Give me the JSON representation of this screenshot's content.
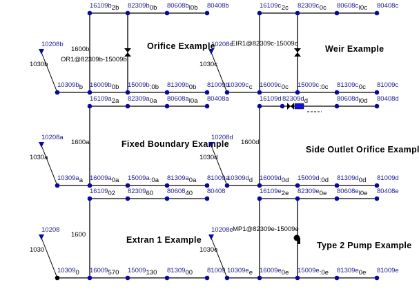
{
  "colors": {
    "node": "#0a0a9a",
    "link": "#000000",
    "label": "#1a1a8c",
    "outlet_node": "#000000"
  },
  "blocks": [
    {
      "id": "b",
      "title": "Orifice Example",
      "top": [
        [
          "16109b",
          "2b"
        ],
        [
          "82309b",
          "0b"
        ],
        [
          "80608b",
          "l0b"
        ],
        [
          "80408b",
          ""
        ]
      ],
      "bottom": [
        [
          "10309b",
          "b"
        ],
        [
          "16009b",
          "0b"
        ],
        [
          "15009b",
          ":0b"
        ],
        [
          "81309b",
          "0b"
        ],
        [
          "81009b",
          ""
        ]
      ],
      "storage": "10208b",
      "inlet_conduit": "1030b",
      "vertical_conduit": "1600b",
      "control": {
        "type": "orifice",
        "label": "OR1@82309b-15009b"
      }
    },
    {
      "id": "c",
      "title": "Weir Example",
      "top": [
        [
          "16109c",
          "2c"
        ],
        [
          "82309c",
          "0c"
        ],
        [
          "80608c",
          "l0c"
        ],
        [
          "80408c",
          ""
        ]
      ],
      "bottom": [
        [
          "10309c",
          "c"
        ],
        [
          "16009c",
          "0c"
        ],
        [
          "15009c",
          ":0c"
        ],
        [
          "81309c",
          "0c"
        ],
        [
          "81009c",
          ""
        ]
      ],
      "storage": "10208c",
      "inlet_conduit": "1030c",
      "vertical_conduit": "",
      "control": {
        "type": "weir",
        "label": "EIR1@82309c-15009c"
      }
    },
    {
      "id": "a",
      "title": "Fixed Boundary Example",
      "top": [
        [
          "16109a",
          "2a"
        ],
        [
          "82309a",
          "0a"
        ],
        [
          "80608a",
          "l0a"
        ],
        [
          "80408a",
          ""
        ]
      ],
      "bottom": [
        [
          "10309a",
          "a"
        ],
        [
          "16009a",
          "0a"
        ],
        [
          "15009a",
          ":0a"
        ],
        [
          "81309a",
          "0a"
        ],
        [
          "81009a",
          ""
        ]
      ],
      "storage": "10208a",
      "inlet_conduit": "1030a",
      "vertical_conduit": "1600a",
      "control": null
    },
    {
      "id": "d",
      "title": "Side Outlet Orifice Example",
      "top": [
        [
          "16109d",
          ""
        ],
        [
          "82309d",
          "d"
        ],
        [
          "80608d",
          "l0d"
        ],
        [
          "80408d",
          ""
        ]
      ],
      "bottom": [
        [
          "10309d",
          "d"
        ],
        [
          "16009d",
          "0d"
        ],
        [
          "15009d",
          ":0d"
        ],
        [
          "81309d",
          "0d"
        ],
        [
          "81009d",
          ""
        ]
      ],
      "storage": "10208d",
      "inlet_conduit": "1030d",
      "vertical_conduit": "1600d",
      "control": {
        "type": "side-orifice",
        "label": ""
      }
    },
    {
      "id": "x",
      "title": "Extran 1 Example",
      "top": [
        [
          "16109",
          "02"
        ],
        [
          "82309",
          "60"
        ],
        [
          "80608",
          "40"
        ],
        [
          "80408",
          ""
        ]
      ],
      "bottom": [
        [
          "10309",
          "0"
        ],
        [
          "16009",
          "570"
        ],
        [
          "15009",
          "130"
        ],
        [
          "81309",
          "00"
        ],
        [
          "81009",
          ""
        ]
      ],
      "storage": "10208",
      "inlet_conduit": "1030",
      "vertical_conduit": "1600",
      "control": null
    },
    {
      "id": "e",
      "title": "Type 2 Pump Example",
      "top": [
        [
          "16109e",
          "2e"
        ],
        [
          "82309e",
          "0e"
        ],
        [
          "80608e",
          "l0e"
        ],
        [
          "80408e",
          ""
        ]
      ],
      "bottom": [
        [
          "10309e",
          "e"
        ],
        [
          "16009e",
          "0e"
        ],
        [
          "15009e",
          ":0e"
        ],
        [
          "81309e",
          "0e"
        ],
        [
          "81009e",
          ""
        ]
      ],
      "storage": "10208e",
      "inlet_conduit": "1030e",
      "vertical_conduit": "",
      "control": {
        "type": "pump",
        "label": "MP1@82309e-15009e"
      }
    }
  ]
}
